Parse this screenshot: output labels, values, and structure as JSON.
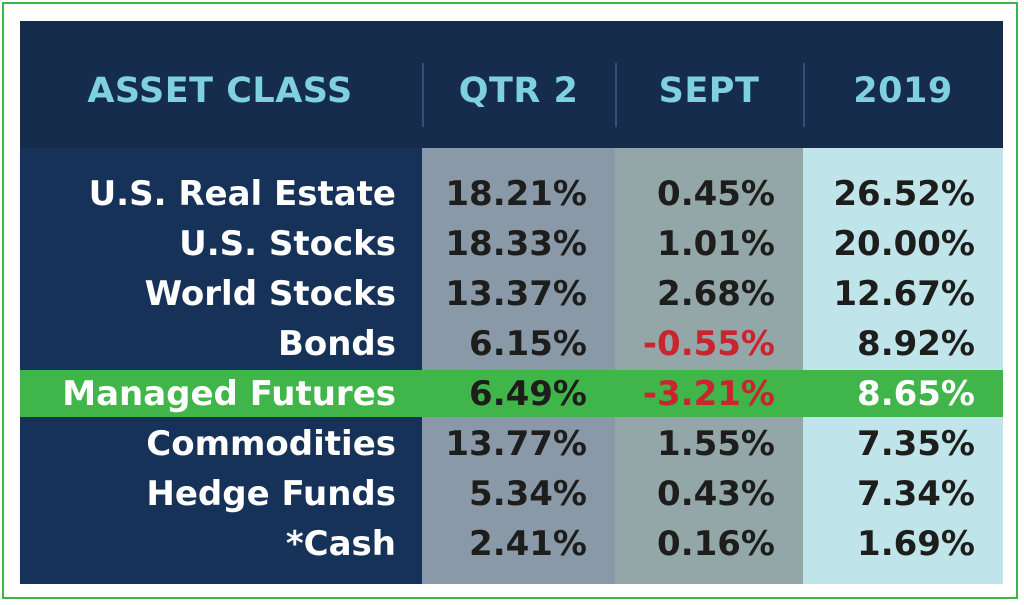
{
  "chart_data": {
    "type": "table",
    "columns": [
      "ASSET CLASS",
      "QTR 2",
      "SEPT",
      "2019"
    ],
    "rows": [
      {
        "label": "U.S. Real Estate",
        "qtr2": "18.21%",
        "sept": "0.45%",
        "y2019": "26.52%",
        "highlight": false
      },
      {
        "label": "U.S. Stocks",
        "qtr2": "18.33%",
        "sept": "1.01%",
        "y2019": "20.00%",
        "highlight": false
      },
      {
        "label": "World Stocks",
        "qtr2": "13.37%",
        "sept": "2.68%",
        "y2019": "12.67%",
        "highlight": false
      },
      {
        "label": "Bonds",
        "qtr2": "6.15%",
        "sept": "-0.55%",
        "y2019": "8.92%",
        "highlight": false
      },
      {
        "label": "Managed Futures",
        "qtr2": "6.49%",
        "sept": "-3.21%",
        "y2019": "8.65%",
        "highlight": true
      },
      {
        "label": "Commodities",
        "qtr2": "13.77%",
        "sept": "1.55%",
        "y2019": "7.35%",
        "highlight": false
      },
      {
        "label": "Hedge Funds",
        "qtr2": "5.34%",
        "sept": "0.43%",
        "y2019": "7.34%",
        "highlight": false
      },
      {
        "label": "*Cash",
        "qtr2": "2.41%",
        "sept": "0.16%",
        "y2019": "1.69%",
        "highlight": false
      }
    ]
  },
  "colors": {
    "header_text": "#7fd1e0",
    "label_column_bg": "#163259",
    "qtr2_column_bg": "#8a99a8",
    "sept_column_bg": "#93a7a9",
    "y2019_column_bg": "#bfe4ea",
    "highlight_band": "#3fb54a",
    "negative_text": "#c8252e",
    "frame_border": "#39b54a"
  }
}
